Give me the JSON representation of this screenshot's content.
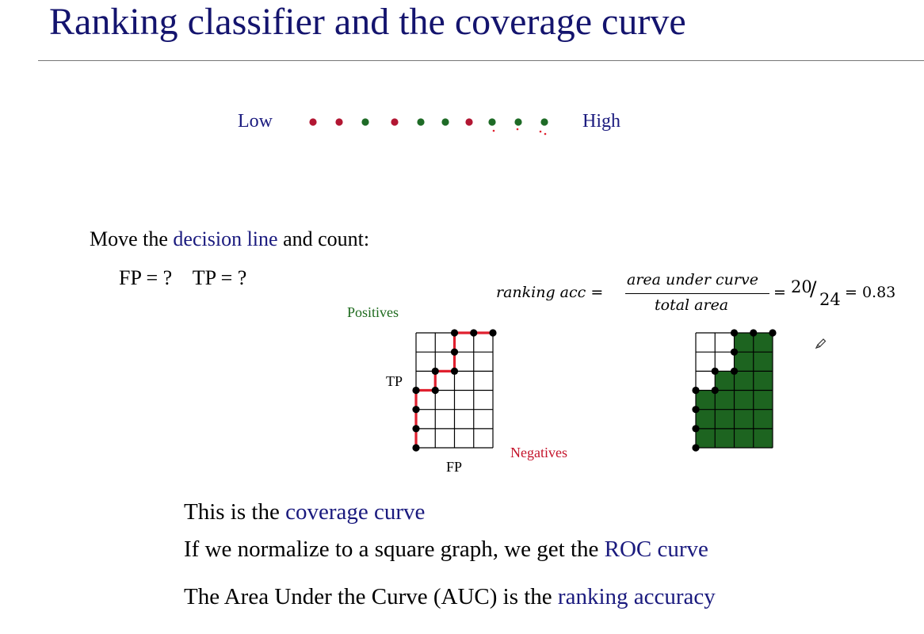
{
  "title": "Ranking classifier and the coverage curve",
  "ranking": {
    "low_label": "Low",
    "high_label": "High",
    "dots": [
      "red",
      "red",
      "green",
      "red",
      "green",
      "green",
      "red",
      "green",
      "green",
      "green"
    ]
  },
  "instructions": {
    "move_prefix": "Move the ",
    "move_highlight": "decision line",
    "move_suffix": " and count:",
    "fp_tp": "FP = ?    TP = ?"
  },
  "formula": {
    "lhs": "ranking acc =",
    "numerator": "area under curve",
    "denominator": "total area",
    "eq": "=",
    "frac_num": "20",
    "frac_den": "24",
    "result": "= 0.83"
  },
  "axes": {
    "positives": "Positives",
    "negatives": "Negatives",
    "tp": "TP",
    "fp": "FP"
  },
  "grid": {
    "cols": 4,
    "rows": 6,
    "area_under_curve": 20,
    "total_area": 24
  },
  "bullets": [
    {
      "prefix": "This is the ",
      "highlight": "coverage curve",
      "suffix": ""
    },
    {
      "prefix": "If we normalize to a square graph, we get the ",
      "highlight": "ROC curve",
      "suffix": ""
    },
    {
      "prefix": "The Area Under the Curve (AUC) is the ",
      "highlight": "ranking accuracy",
      "suffix": ""
    }
  ],
  "colors": {
    "positive": "#1e6b26",
    "negative": "#b21632",
    "curve": "#e0202f",
    "area": "#1d6420",
    "accent": "#1a1a7e"
  }
}
